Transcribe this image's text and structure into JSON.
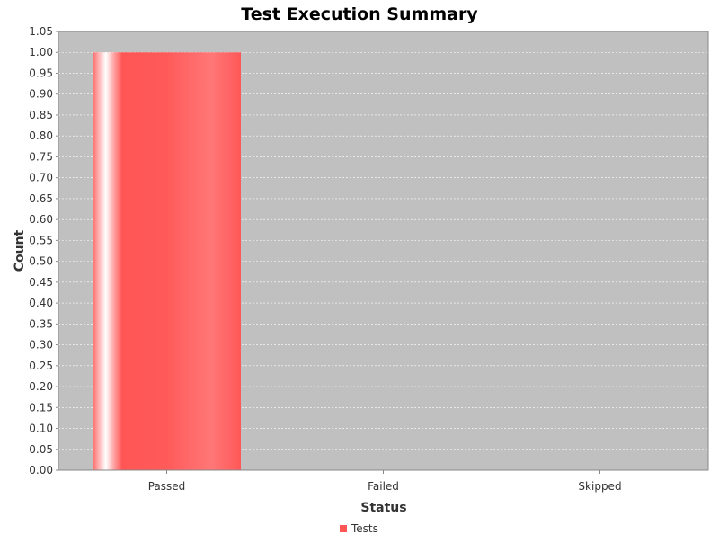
{
  "chart_data": {
    "type": "bar",
    "title": "Test Execution Summary",
    "xlabel": "Status",
    "ylabel": "Count",
    "categories": [
      "Passed",
      "Failed",
      "Skipped"
    ],
    "series": [
      {
        "name": "Tests",
        "values": [
          1.0,
          0,
          0
        ],
        "color": "#ff5555"
      }
    ],
    "ylim": [
      0,
      1.05
    ],
    "ytick_step": 0.05,
    "grid": true,
    "legend": "bottom",
    "plot_background": "#c0c0c0"
  }
}
